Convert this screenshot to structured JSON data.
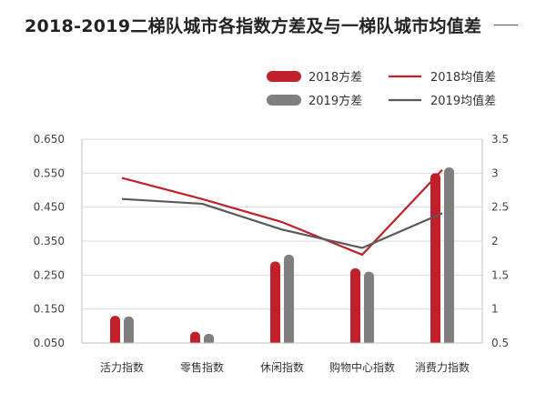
{
  "title": "2018-2019二梯队城市各指数方差及与一梯队城市均值差",
  "colors": {
    "red": "#c0202a",
    "gray": "#7f7f7f",
    "grid": "#d9d9d9",
    "axis": "#bfbfbf"
  },
  "chart_data": {
    "type": "bar",
    "categories": [
      "活力指数",
      "零售指数",
      "休闲指数",
      "购物中心指数",
      "消费力指数"
    ],
    "series": [
      {
        "name": "2018方差",
        "kind": "bar",
        "axis": "left",
        "color": "#c0202a",
        "values": [
          0.13,
          0.083,
          0.29,
          0.27,
          0.55
        ]
      },
      {
        "name": "2019方差",
        "kind": "bar",
        "axis": "left",
        "color": "#7f7f7f",
        "values": [
          0.128,
          0.077,
          0.31,
          0.26,
          0.567
        ]
      },
      {
        "name": "2018均值差",
        "kind": "line",
        "axis": "right",
        "color": "#c0202a",
        "values": [
          2.93,
          2.62,
          2.28,
          1.8,
          3.05
        ]
      },
      {
        "name": "2019均值差",
        "kind": "line",
        "axis": "right",
        "color": "#595959",
        "values": [
          2.62,
          2.55,
          2.17,
          1.9,
          2.41
        ]
      }
    ],
    "y_left": {
      "min": 0.05,
      "max": 0.65,
      "ticks": [
        "0.050",
        "0.150",
        "0.250",
        "0.350",
        "0.450",
        "0.550",
        "0.650"
      ]
    },
    "y_right": {
      "min": 0.5,
      "max": 3.5,
      "ticks": [
        "0.5",
        "1",
        "1.5",
        "2",
        "2.5",
        "3",
        "3.5"
      ]
    },
    "grid": true,
    "legend_position": "top-right"
  }
}
